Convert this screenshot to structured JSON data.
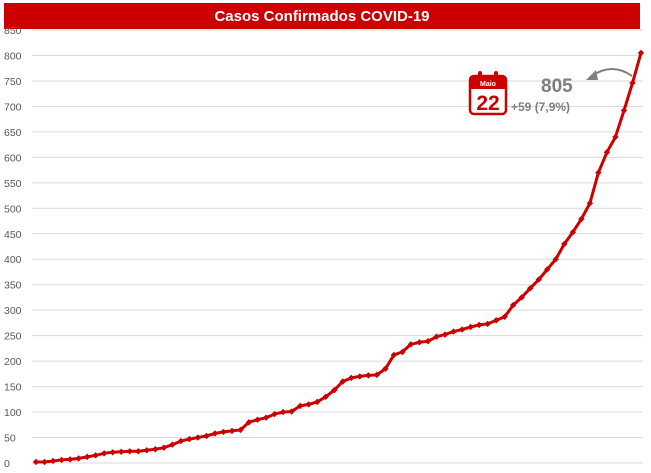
{
  "chart_data": {
    "type": "line",
    "title": "Casos Confirmados COVID-19",
    "xlabel": "",
    "ylabel": "",
    "ylim": [
      0,
      850
    ],
    "yticks": [
      0,
      50,
      100,
      150,
      200,
      250,
      300,
      350,
      400,
      450,
      500,
      550,
      600,
      650,
      700,
      750,
      800,
      850
    ],
    "grid": true,
    "line_color": "#cc0000",
    "series": [
      {
        "values": [
          2,
          2,
          4,
          6,
          7,
          9,
          12,
          15,
          19,
          21,
          22,
          23,
          23,
          25,
          27,
          30,
          36,
          43,
          47,
          50,
          53,
          58,
          61,
          63,
          65,
          80,
          85,
          89,
          96,
          100,
          101,
          112,
          115,
          120,
          130,
          143,
          160,
          167,
          170,
          172,
          173,
          185,
          212,
          218,
          233,
          237,
          239,
          248,
          252,
          258,
          262,
          267,
          271,
          273,
          280,
          287,
          310,
          325,
          343,
          360,
          380,
          400,
          430,
          453,
          479,
          510,
          570,
          610,
          640,
          692,
          746,
          805
        ]
      }
    ],
    "annotation": {
      "value": "805",
      "delta": "+59 (7,9%)",
      "calendar_month": "Maio",
      "calendar_day": "22"
    }
  }
}
